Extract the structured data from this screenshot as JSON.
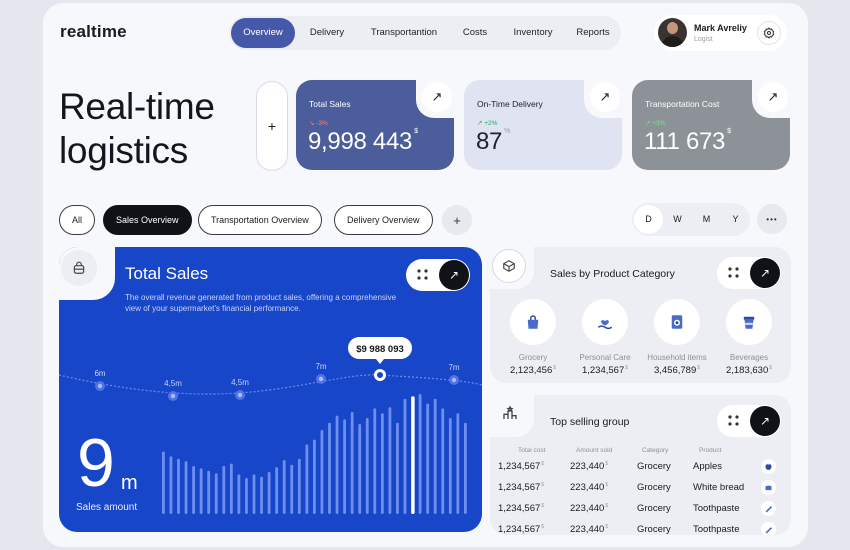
{
  "app": {
    "logo": "realtime"
  },
  "nav": {
    "items": [
      {
        "label": "Overview",
        "active": true
      },
      {
        "label": "Delivery"
      },
      {
        "label": "Transportantion"
      },
      {
        "label": "Costs"
      },
      {
        "label": "Inventory"
      },
      {
        "label": "Reports"
      }
    ]
  },
  "user": {
    "name": "Mark Avreliy",
    "role": "Logist",
    "settings_icon": "gear-icon"
  },
  "headline": {
    "line1": "Real-time",
    "line2": "logistics",
    "add_label": "+"
  },
  "kpis": [
    {
      "label": "Total Sales",
      "change": "-3%",
      "value": "9,998 443",
      "unit": "$",
      "trend": "down"
    },
    {
      "label": "On-Time Delivery",
      "change": "+2%",
      "value": "87",
      "unit": "%",
      "trend": "up"
    },
    {
      "label": "Transportation Cost",
      "change": "+3%",
      "value": "111 673",
      "unit": "$",
      "trend": "up"
    }
  ],
  "filters": {
    "chips": [
      "All",
      "Sales Overview",
      "Transportation Overview",
      "Delivery Overview"
    ],
    "active": "Sales Overview",
    "add_label": "+",
    "periods": [
      "D",
      "W",
      "M",
      "Y"
    ],
    "active_period": "D",
    "more_label": "•••"
  },
  "sales_panel": {
    "title": "Total Sales",
    "description": "The overall revenue generated from product sales, offering a comprehensive view of your supermarket's financial performance.",
    "big_value": "9",
    "big_unit": "m",
    "big_label": "Sales amount",
    "tooltip": "$9 988 093",
    "points": [
      "6m",
      "4,5m",
      "4,5m",
      "7m",
      "",
      "7m"
    ],
    "colors": {
      "panel": "#1846c8",
      "bars": "#6f8ff0",
      "highlight": "#ffffff"
    }
  },
  "chart_data": {
    "type": "bar",
    "values": [
      52,
      48,
      46,
      44,
      40,
      38,
      36,
      34,
      40,
      42,
      33,
      30,
      33,
      31,
      35,
      39,
      45,
      41,
      46,
      58,
      62,
      70,
      76,
      82,
      79,
      85,
      75,
      80,
      88,
      84,
      89,
      76,
      96,
      98,
      100,
      92,
      96,
      88,
      80,
      84,
      76
    ],
    "highlight_index": 33,
    "highlight_label": "$9 988 093",
    "ylim": [
      0,
      100
    ]
  },
  "categories": {
    "title": "Sales by Product Category",
    "items": [
      {
        "name": "Grocery",
        "value": "2,123,456",
        "unit": "$",
        "icon": "shopping-bag-icon"
      },
      {
        "name": "Personal Care",
        "value": "1,234,567",
        "unit": "$",
        "icon": "hand-heart-icon"
      },
      {
        "name": "Household items",
        "value": "3,456,789",
        "unit": "$",
        "icon": "washing-machine-icon"
      },
      {
        "name": "Beverages",
        "value": "2,183,630",
        "unit": "$",
        "icon": "coffee-cup-icon"
      }
    ]
  },
  "top_selling": {
    "title": "Top selling group",
    "headers": [
      "Total cost",
      "Amount sold",
      "Category",
      "Product"
    ],
    "rows": [
      {
        "total": "1,234,567",
        "amount": "223,440",
        "category": "Grocery",
        "product": "Apples",
        "icon": "apple-icon"
      },
      {
        "total": "1,234,567",
        "amount": "223,440",
        "category": "Grocery",
        "product": "White bread",
        "icon": "bread-icon"
      },
      {
        "total": "1,234,567",
        "amount": "223,440",
        "category": "Grocery",
        "product": "Toothpaste",
        "icon": "toothpaste-icon"
      },
      {
        "total": "1,234,567",
        "amount": "223,440",
        "category": "Grocery",
        "product": "Toothpaste",
        "icon": "toothpaste-icon"
      }
    ],
    "unit": "$"
  }
}
